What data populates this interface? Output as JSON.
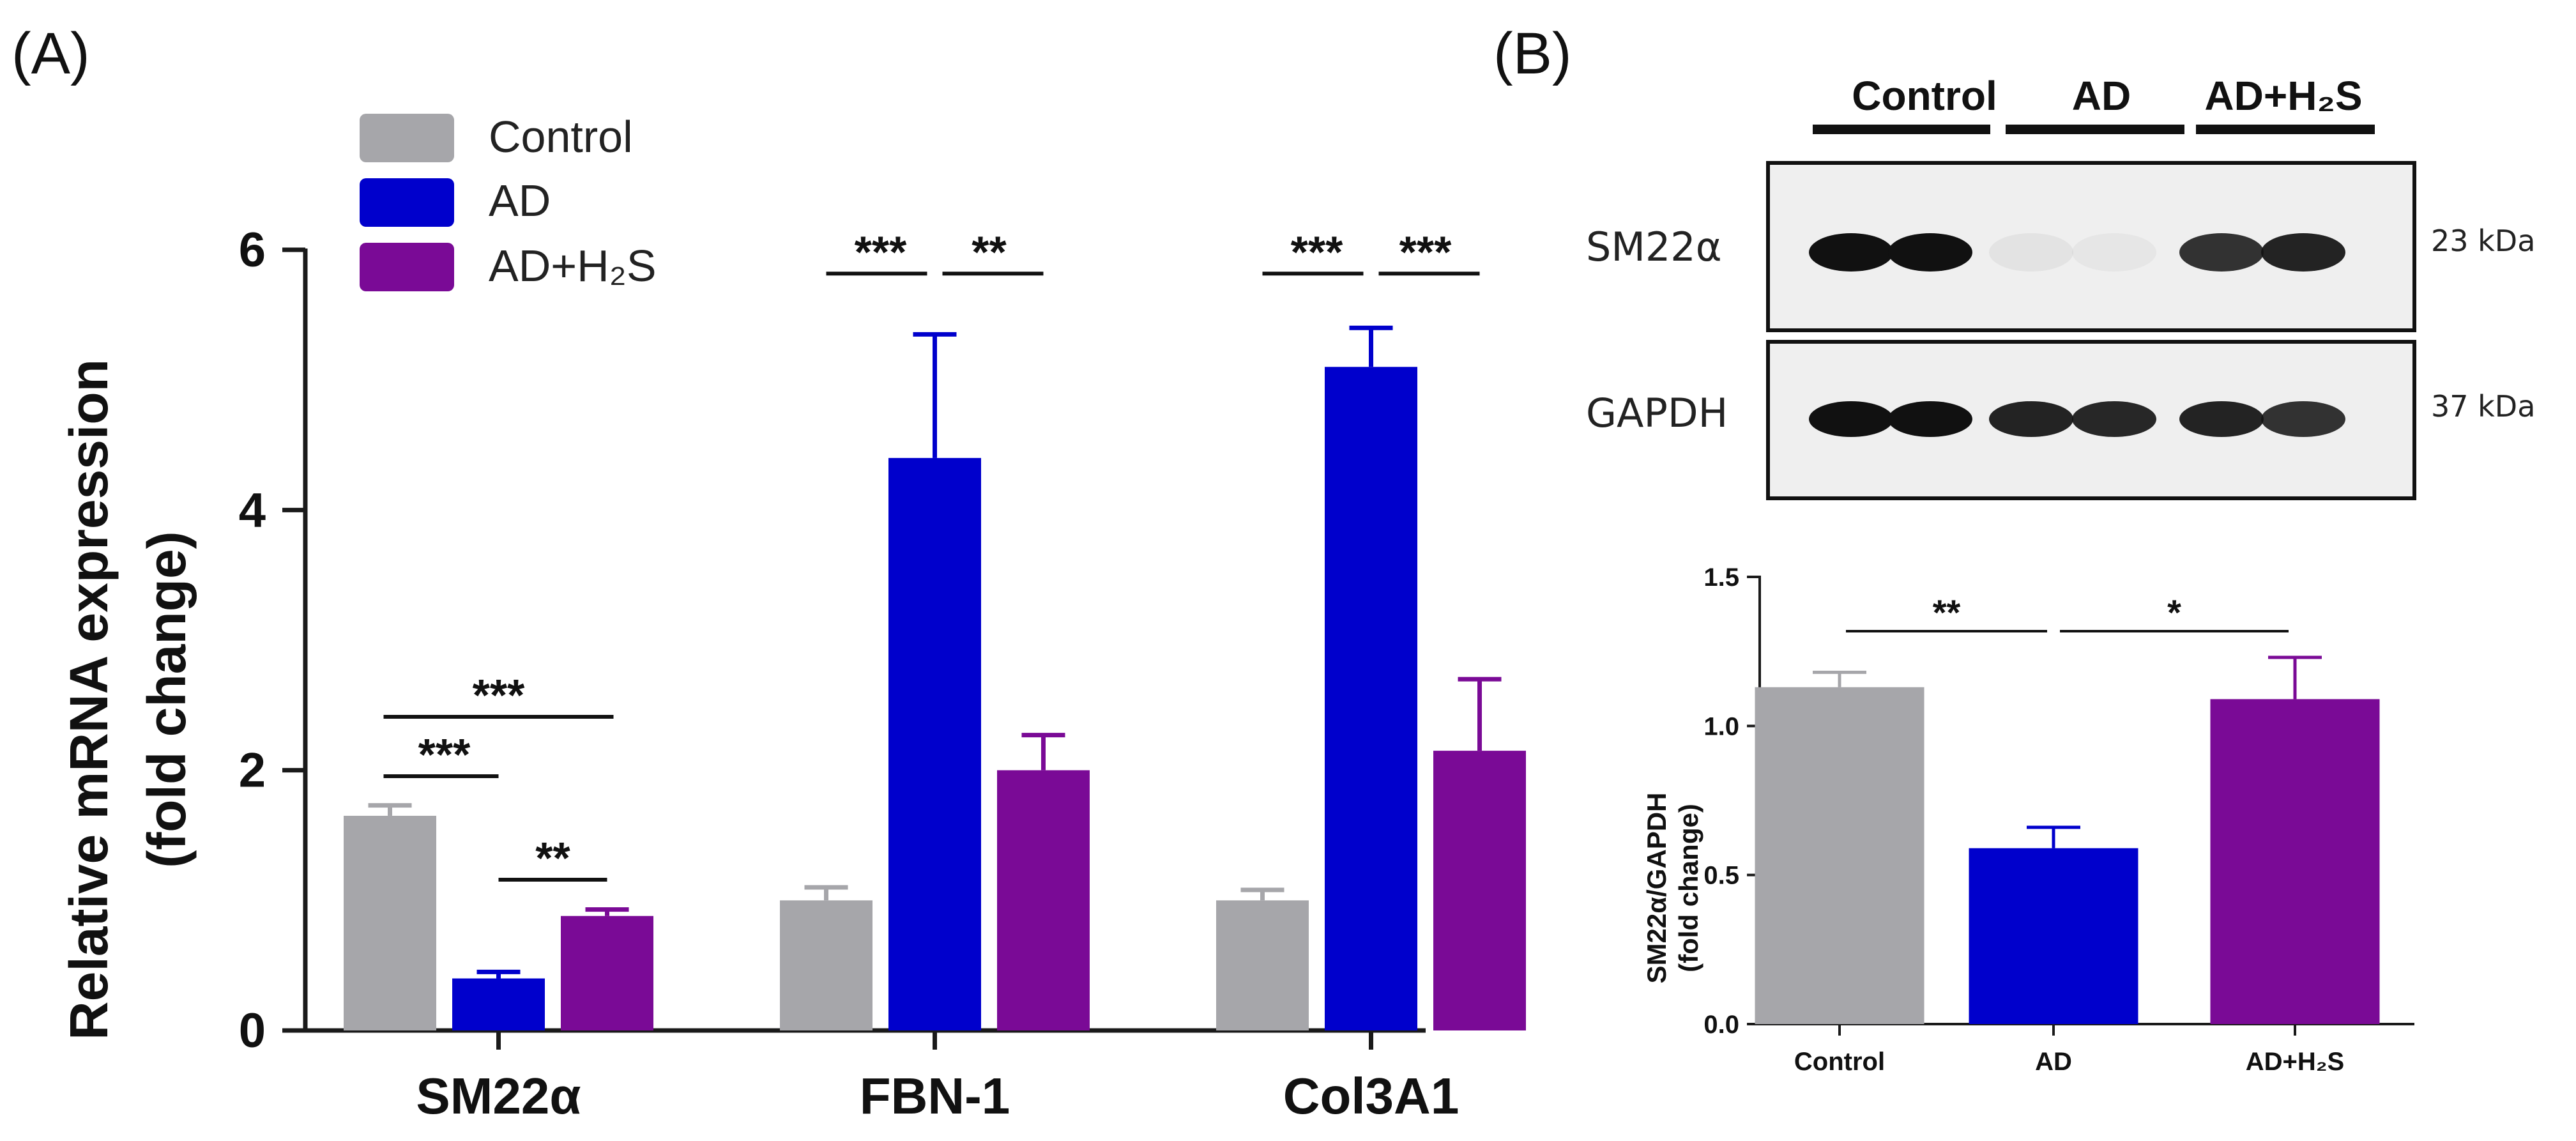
{
  "colors": {
    "control": "#A6A6AA",
    "ad": "#0000CC",
    "ad_h2s": "#7A0A96",
    "axis": "#1a1a1a",
    "blot_bg": "#EFEFEF",
    "band": "#111111"
  },
  "panel_a": {
    "label": "(A)",
    "legend": [
      {
        "name": "Control",
        "color_key": "control"
      },
      {
        "name": "AD",
        "color_key": "ad"
      },
      {
        "name": "AD+H₂S",
        "color_key": "ad_h2s"
      }
    ],
    "significance": [
      {
        "group": 0,
        "from": 0,
        "to": 2,
        "text": "***",
        "level": 1.93
      },
      {
        "group": 0,
        "from": 0,
        "to": 1,
        "text": "***",
        "level": 1.93
      },
      {
        "group": 0,
        "from": 1,
        "to": 2,
        "text": "**",
        "level": 1.93
      },
      {
        "group": 1,
        "from": 0,
        "to": 1,
        "text": "***",
        "level": 5.93
      },
      {
        "group": 1,
        "from": 1,
        "to": 2,
        "text": "**",
        "level": 5.93
      },
      {
        "group": 2,
        "from": 0,
        "to": 1,
        "text": "***",
        "level": 5.93
      },
      {
        "group": 2,
        "from": 1,
        "to": 2,
        "text": "***",
        "level": 5.93
      }
    ]
  },
  "panel_b": {
    "label": "(B)",
    "blot": {
      "lane_groups": [
        "Control",
        "AD",
        "AD+H₂S"
      ],
      "rows": [
        {
          "protein": "SM22α",
          "size": "23 kDa",
          "intensities": [
            1.0,
            1.0,
            0.05,
            0.04,
            0.85,
            0.92
          ]
        },
        {
          "protein": "GAPDH",
          "size": "37 kDa",
          "intensities": [
            1.0,
            1.0,
            0.92,
            0.9,
            0.92,
            0.85
          ]
        }
      ]
    },
    "significance": [
      {
        "from": 0,
        "to": 1,
        "text": "**"
      },
      {
        "from": 1,
        "to": 2,
        "text": "*"
      }
    ]
  },
  "chart_data": [
    {
      "type": "bar",
      "panel": "A",
      "title": "",
      "xlabel": "",
      "ylabel": "Relative mRNA expression",
      "ylabel2": "(fold change)",
      "categories": [
        "SM22α",
        "FBN-1",
        "Col3A1"
      ],
      "ylim": [
        0,
        6
      ],
      "yticks": [
        0,
        2,
        4,
        6
      ],
      "ytick_labels": [
        "0",
        "2",
        "4",
        "6"
      ],
      "series": [
        {
          "name": "Control",
          "values": [
            1.65,
            1.0,
            1.0
          ],
          "errors": [
            0.08,
            0.1,
            0.08
          ]
        },
        {
          "name": "AD",
          "values": [
            0.4,
            4.4,
            5.1
          ],
          "errors": [
            0.05,
            0.95,
            0.3
          ]
        },
        {
          "name": "AD+H₂S",
          "values": [
            0.88,
            2.0,
            2.15
          ],
          "errors": [
            0.05,
            0.27,
            0.55
          ]
        }
      ]
    },
    {
      "type": "bar",
      "panel": "B",
      "title": "",
      "xlabel": "",
      "ylabel": "SM22α/GAPDH",
      "ylabel2": "(fold change)",
      "categories": [
        "Control",
        "AD",
        "AD+H₂S"
      ],
      "ylim": [
        0,
        1.5
      ],
      "yticks": [
        0,
        0.5,
        1.0,
        1.5
      ],
      "ytick_labels": [
        "0.0",
        "0.5",
        "1.0",
        "1.5"
      ],
      "series": [
        {
          "name": "SM22α/GAPDH",
          "values": [
            1.13,
            0.59,
            1.09
          ],
          "errors": [
            0.05,
            0.07,
            0.14
          ]
        }
      ]
    }
  ]
}
